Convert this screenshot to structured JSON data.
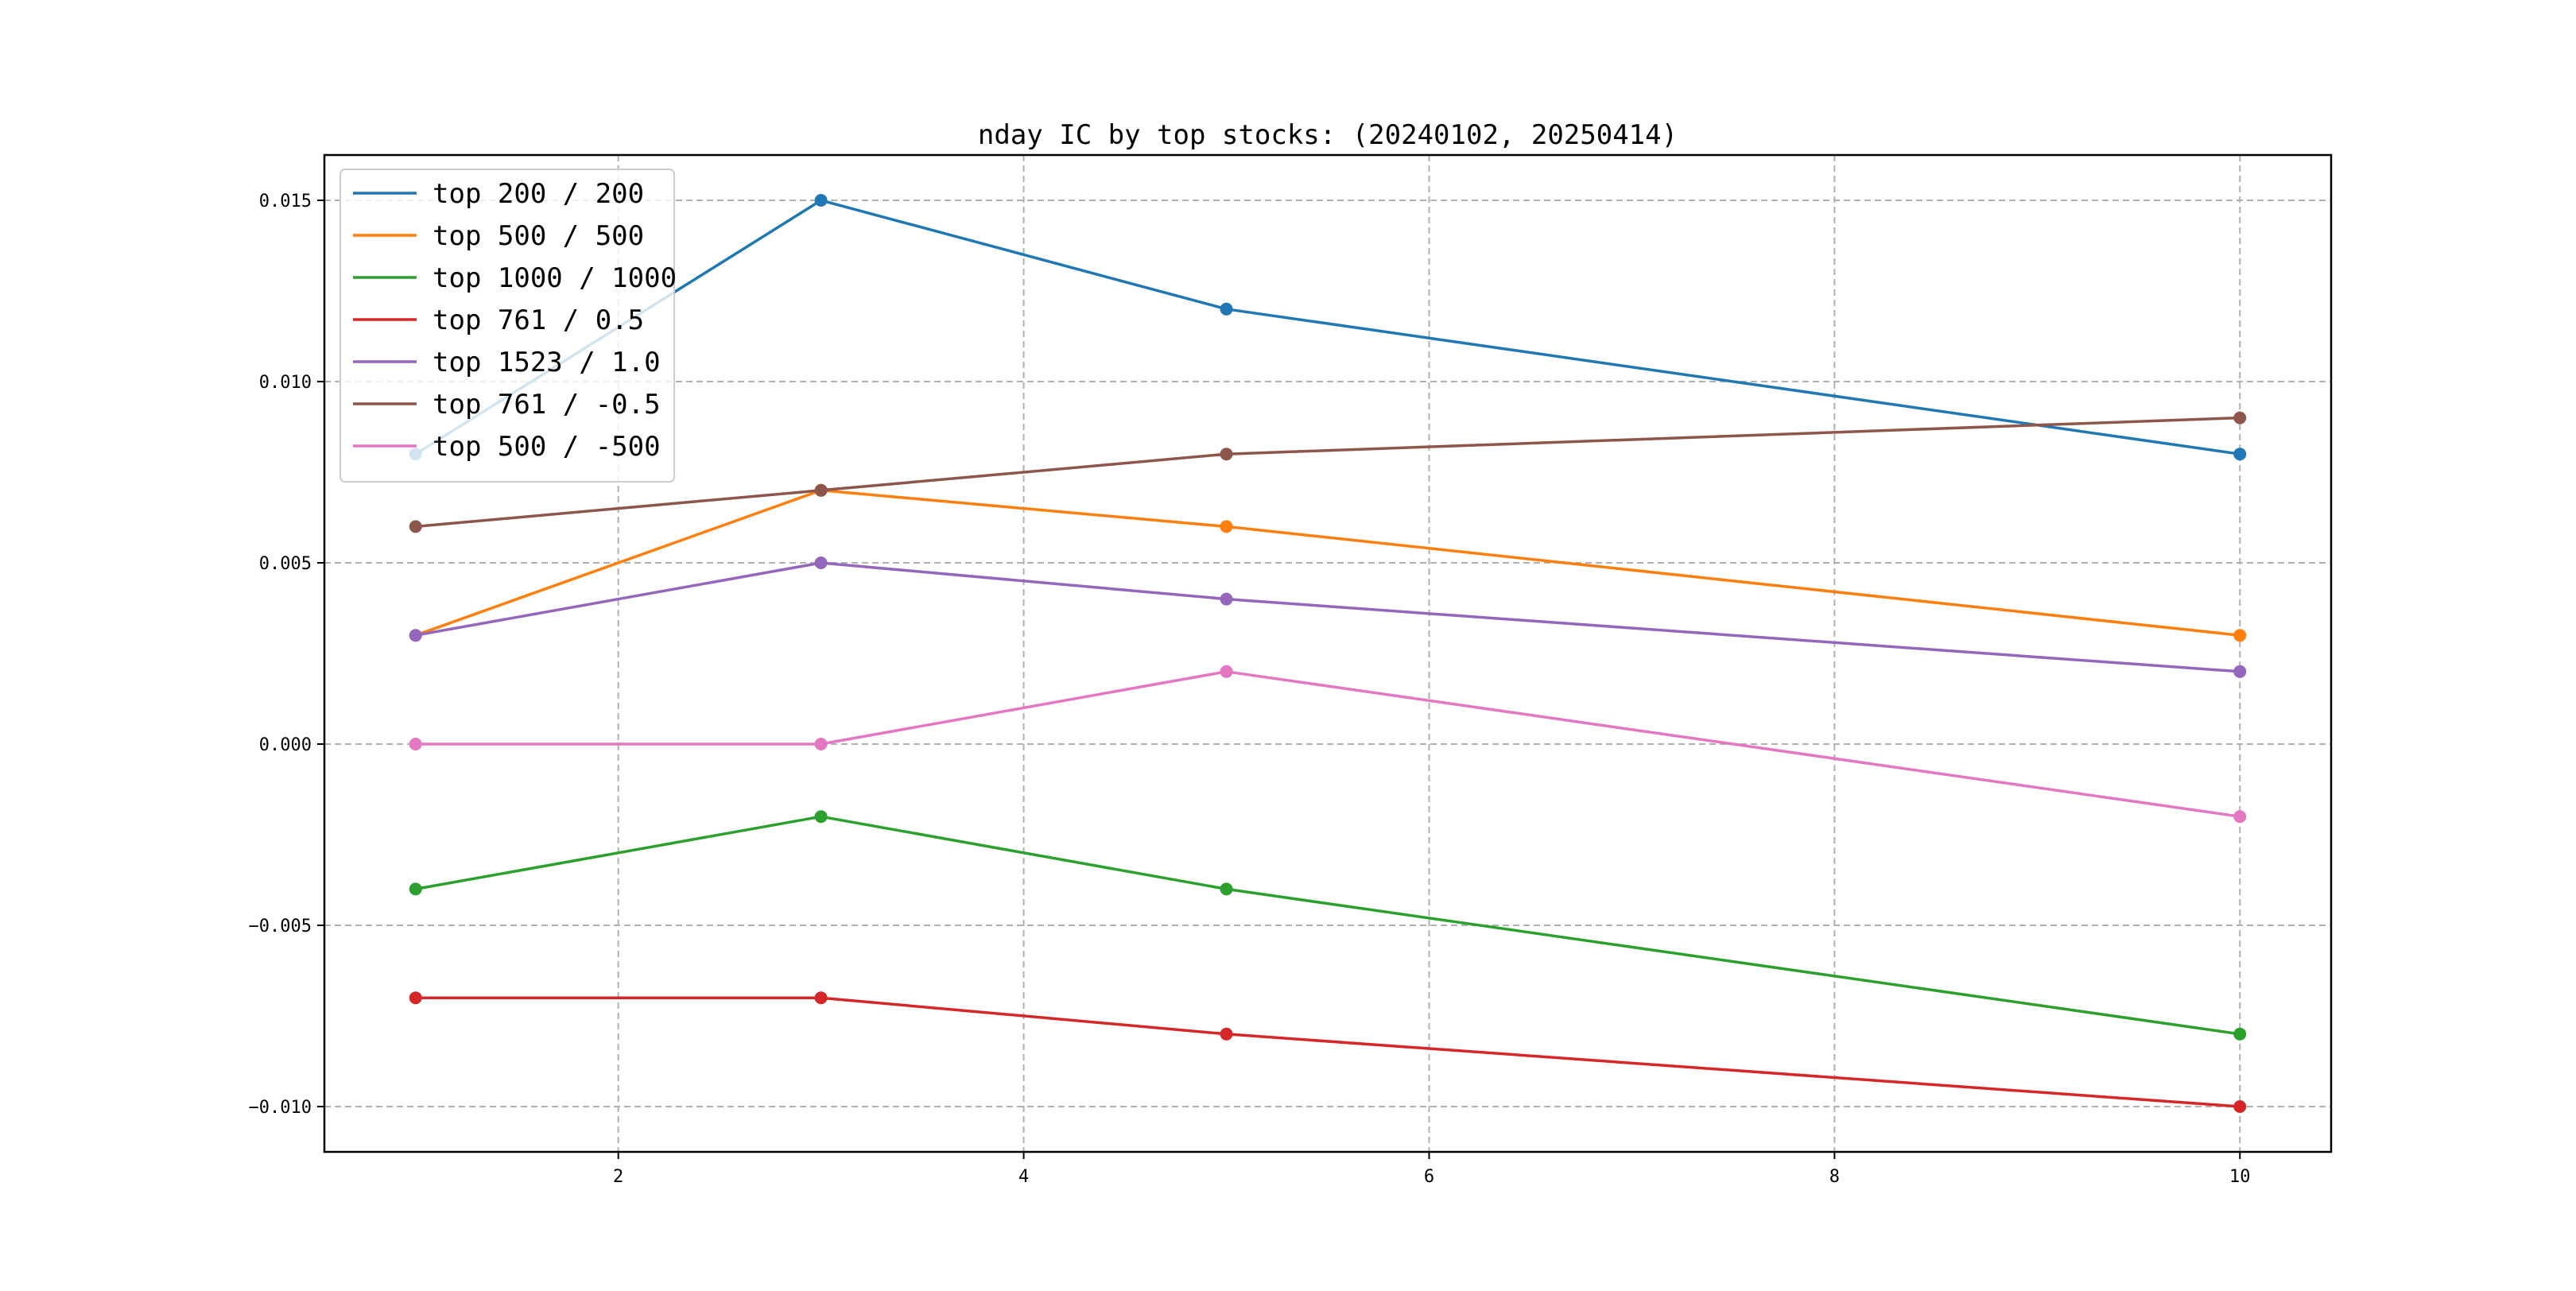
{
  "chart_data": {
    "type": "line",
    "title": "nday IC by top stocks: (20240102, 20250414)",
    "xlabel": "",
    "ylabel": "",
    "x": [
      1,
      3,
      5,
      10
    ],
    "xlim": [
      0.55,
      10.45
    ],
    "ylim": [
      -0.01125,
      0.01625
    ],
    "xticks": [
      2,
      4,
      6,
      8,
      10
    ],
    "xtick_labels": [
      "2",
      "4",
      "6",
      "8",
      "10"
    ],
    "yticks": [
      -0.01,
      -0.005,
      0.0,
      0.005,
      0.01,
      0.015
    ],
    "ytick_labels": [
      "−0.010",
      "−0.005",
      "0.000",
      "0.005",
      "0.010",
      "0.015"
    ],
    "grid": true,
    "legend_position": "top-left",
    "markers": "circle",
    "series": [
      {
        "name": "top 200 / 200",
        "color": "#1f77b4",
        "values": [
          0.008,
          0.015,
          0.012,
          0.008
        ]
      },
      {
        "name": "top 500 / 500",
        "color": "#ff7f0e",
        "values": [
          0.003,
          0.007,
          0.006,
          0.003
        ]
      },
      {
        "name": "top 1000 / 1000",
        "color": "#2ca02c",
        "values": [
          -0.004,
          -0.002,
          -0.004,
          -0.008
        ]
      },
      {
        "name": "top 761 / 0.5",
        "color": "#d62728",
        "values": [
          -0.007,
          -0.007,
          -0.008,
          -0.01
        ]
      },
      {
        "name": "top 1523 / 1.0",
        "color": "#9467bd",
        "values": [
          0.003,
          0.005,
          0.004,
          0.002
        ]
      },
      {
        "name": "top 761 / -0.5",
        "color": "#8c564b",
        "values": [
          0.006,
          0.007,
          0.008,
          0.009
        ]
      },
      {
        "name": "top 500 / -500",
        "color": "#e377c2",
        "values": [
          0.0,
          0.0,
          0.002,
          -0.002
        ]
      }
    ]
  }
}
